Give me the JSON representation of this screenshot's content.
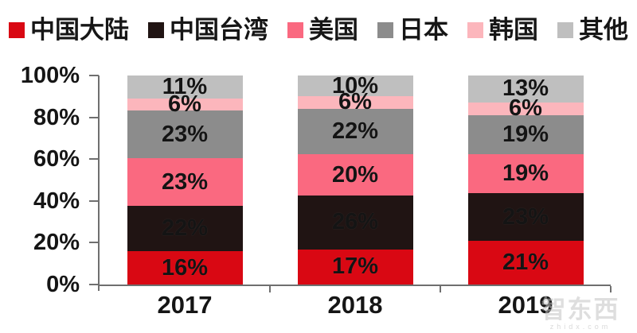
{
  "page": {
    "background": "#ffffff",
    "text_color": "#151515",
    "axis_color": "#6f6f6f"
  },
  "legend": {
    "position": "top",
    "items": [
      {
        "label": "中国大陆",
        "color": "#d90813"
      },
      {
        "label": "中国台湾",
        "color": "#201413"
      },
      {
        "label": "美国",
        "color": "#fa6980"
      },
      {
        "label": "日本",
        "color": "#8c8c8c"
      },
      {
        "label": "韩国",
        "color": "#fcb6bc"
      },
      {
        "label": "其他",
        "color": "#bfbfbf"
      }
    ]
  },
  "chart_data": {
    "type": "bar",
    "stacked": true,
    "percent_stacked": true,
    "title": "",
    "xlabel": "",
    "ylabel": "",
    "categories": [
      "2017",
      "2018",
      "2019"
    ],
    "series": [
      {
        "name": "中国大陆",
        "color": "#d90813",
        "values": [
          16,
          17,
          21
        ]
      },
      {
        "name": "中国台湾",
        "color": "#201413",
        "values": [
          22,
          26,
          23
        ]
      },
      {
        "name": "美国",
        "color": "#fa6980",
        "values": [
          23,
          20,
          19
        ]
      },
      {
        "name": "日本",
        "color": "#8c8c8c",
        "values": [
          23,
          22,
          19
        ]
      },
      {
        "name": "韩国",
        "color": "#fcb6bc",
        "values": [
          6,
          6,
          6
        ]
      },
      {
        "name": "其他",
        "color": "#bfbfbf",
        "values": [
          11,
          10,
          13
        ]
      }
    ],
    "data_labels": {
      "2017": [
        "16%",
        "22%",
        "23%",
        "23%",
        "6%",
        "11%"
      ],
      "2018": [
        "17%",
        "26%",
        "20%",
        "22%",
        "6%",
        "10%"
      ],
      "2019": [
        "21%",
        "23%",
        "19%",
        "19%",
        "6%",
        "13%"
      ]
    },
    "y_ticks": [
      "0%",
      "20%",
      "40%",
      "60%",
      "80%",
      "100%"
    ],
    "ylim": [
      0,
      100
    ],
    "grid": false,
    "legend_position": "top"
  },
  "watermark": {
    "text": "智东西",
    "subtext": "zhidx.com"
  }
}
